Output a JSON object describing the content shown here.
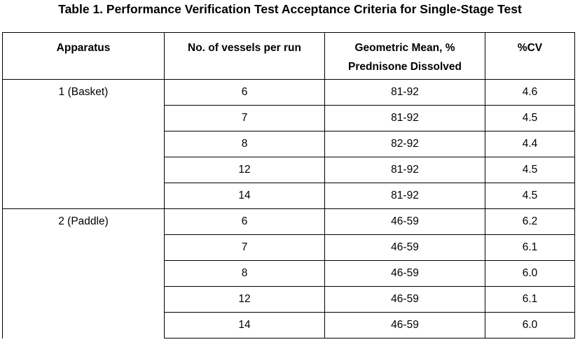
{
  "title": "Table 1. Performance Verification Test Acceptance Criteria for Single-Stage Test",
  "headers": {
    "apparatus": "Apparatus",
    "vessels": "No. of vessels per run",
    "mean_line1": "Geometric Mean, %",
    "mean_line2": "Prednisone Dissolved",
    "cv": "%CV"
  },
  "groups": [
    {
      "apparatus": "1 (Basket)",
      "rows": [
        {
          "vessels": "6",
          "mean": "81-92",
          "cv": "4.6"
        },
        {
          "vessels": "7",
          "mean": "81-92",
          "cv": "4.5"
        },
        {
          "vessels": "8",
          "mean": "82-92",
          "cv": "4.4"
        },
        {
          "vessels": "12",
          "mean": "81-92",
          "cv": "4.5"
        },
        {
          "vessels": "14",
          "mean": "81-92",
          "cv": "4.5"
        }
      ]
    },
    {
      "apparatus": "2 (Paddle)",
      "rows": [
        {
          "vessels": "6",
          "mean": "46-59",
          "cv": "6.2"
        },
        {
          "vessels": "7",
          "mean": "46-59",
          "cv": "6.1"
        },
        {
          "vessels": "8",
          "mean": "46-59",
          "cv": "6.0"
        },
        {
          "vessels": "12",
          "mean": "46-59",
          "cv": "6.1"
        },
        {
          "vessels": "14",
          "mean": "46-59",
          "cv": "6.0"
        }
      ]
    }
  ]
}
